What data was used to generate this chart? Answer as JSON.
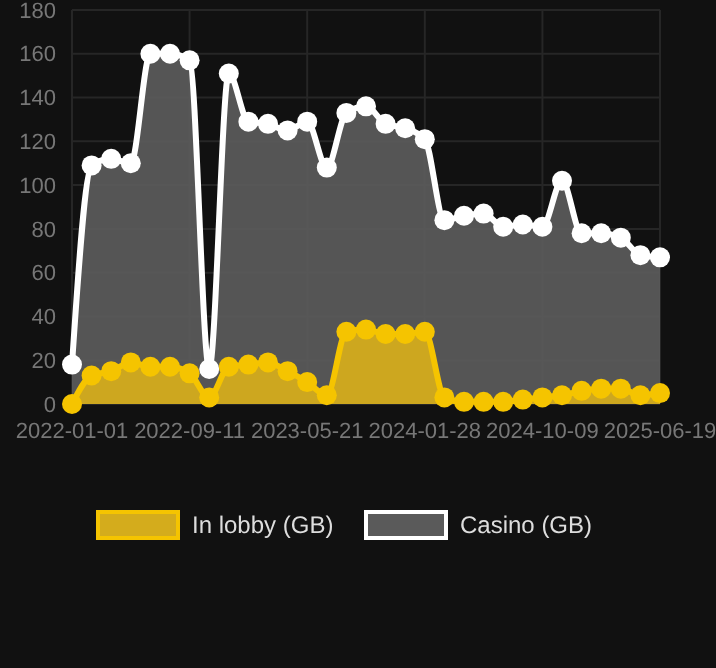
{
  "chart_data": {
    "type": "area",
    "categories": [
      "2022-01-01",
      null,
      null,
      null,
      null,
      null,
      "2022-09-11",
      null,
      null,
      null,
      null,
      null,
      "2023-05-21",
      null,
      null,
      null,
      null,
      null,
      "2024-01-28",
      null,
      null,
      null,
      null,
      null,
      "2024-10-09",
      null,
      null,
      null,
      null,
      null,
      "2025-06-19"
    ],
    "series": [
      {
        "name": "In lobby (GB)",
        "color": "#f5c400",
        "values": [
          0,
          13,
          15,
          19,
          17,
          17,
          14,
          3,
          17,
          18,
          19,
          15,
          10,
          4,
          33,
          34,
          32,
          32,
          33,
          3,
          1,
          1,
          1,
          2,
          3,
          4,
          6,
          7,
          7,
          4,
          5
        ]
      },
      {
        "name": "Casino (GB)",
        "color": "#ffffff",
        "values": [
          18,
          109,
          112,
          110,
          160,
          160,
          157,
          16,
          151,
          129,
          128,
          125,
          129,
          108,
          133,
          136,
          128,
          126,
          121,
          84,
          86,
          87,
          81,
          82,
          81,
          102,
          78,
          78,
          76,
          68,
          67
        ]
      }
    ],
    "ylim": [
      0,
      180
    ],
    "yticks": [
      0,
      20,
      40,
      60,
      80,
      100,
      120,
      140,
      160,
      180
    ],
    "grid": true,
    "legend": "bottom",
    "marker": "circle"
  }
}
